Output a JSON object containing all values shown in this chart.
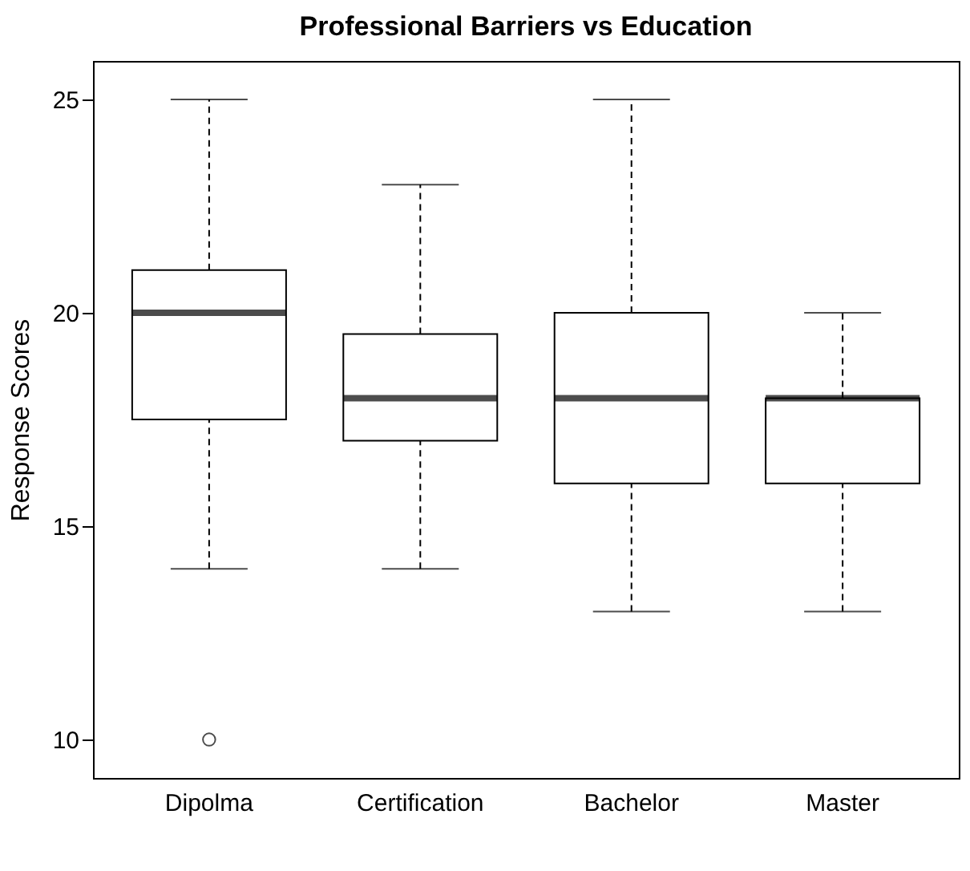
{
  "chart_data": {
    "type": "box",
    "title": "Professional Barriers vs Education",
    "ylabel": "Response Scores",
    "categories": [
      "Dipolma",
      "Certification",
      "Bachelor",
      "Master"
    ],
    "boxes": [
      {
        "low": 14,
        "q1": 17.5,
        "median": 20,
        "q3": 21,
        "high": 25,
        "outliers": [
          10
        ]
      },
      {
        "low": 14,
        "q1": 17,
        "median": 18,
        "q3": 19.5,
        "high": 23
      },
      {
        "low": 13,
        "q1": 16,
        "median": 18,
        "q3": 20,
        "high": 25
      },
      {
        "low": 13,
        "q1": 16,
        "median": 18,
        "q3": 18,
        "high": 20
      }
    ],
    "ylim": [
      9.1,
      25.9
    ],
    "yticks": [
      10,
      15,
      20,
      25
    ],
    "line_style": "dashed"
  }
}
